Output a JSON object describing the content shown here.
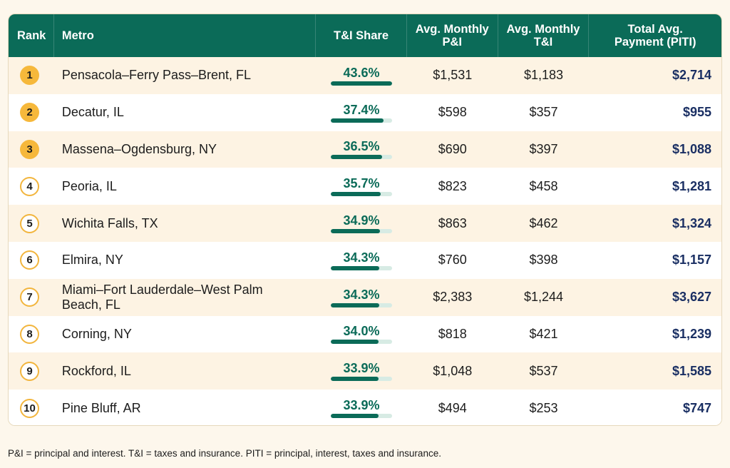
{
  "table": {
    "headers": {
      "rank": "Rank",
      "metro": "Metro",
      "share": "T&I Share",
      "pi": "Avg. Monthly P&I",
      "ti": "Avg. Monthly T&I",
      "total": "Total Avg. Payment (PITI)"
    },
    "colors": {
      "header_bg": "#0b6b58",
      "accent": "#f6b83b",
      "total_text": "#1a2f63"
    },
    "rows": [
      {
        "rank": "1",
        "metro": "Pensacola–Ferry Pass–Brent, FL",
        "share": "43.6%",
        "share_value": 43.6,
        "pi": "$1,531",
        "ti": "$1,183",
        "total": "$2,714"
      },
      {
        "rank": "2",
        "metro": "Decatur, IL",
        "share": "37.4%",
        "share_value": 37.4,
        "pi": "$598",
        "ti": "$357",
        "total": "$955"
      },
      {
        "rank": "3",
        "metro": "Massena–Ogdensburg, NY",
        "share": "36.5%",
        "share_value": 36.5,
        "pi": "$690",
        "ti": "$397",
        "total": "$1,088"
      },
      {
        "rank": "4",
        "metro": "Peoria, IL",
        "share": "35.7%",
        "share_value": 35.7,
        "pi": "$823",
        "ti": "$458",
        "total": "$1,281"
      },
      {
        "rank": "5",
        "metro": "Wichita Falls, TX",
        "share": "34.9%",
        "share_value": 34.9,
        "pi": "$863",
        "ti": "$462",
        "total": "$1,324"
      },
      {
        "rank": "6",
        "metro": "Elmira, NY",
        "share": "34.3%",
        "share_value": 34.3,
        "pi": "$760",
        "ti": "$398",
        "total": "$1,157"
      },
      {
        "rank": "7",
        "metro": "Miami–Fort Lauderdale–West Palm Beach, FL",
        "share": "34.3%",
        "share_value": 34.3,
        "pi": "$2,383",
        "ti": "$1,244",
        "total": "$3,627"
      },
      {
        "rank": "8",
        "metro": "Corning, NY",
        "share": "34.0%",
        "share_value": 34.0,
        "pi": "$818",
        "ti": "$421",
        "total": "$1,239"
      },
      {
        "rank": "9",
        "metro": "Rockford, IL",
        "share": "33.9%",
        "share_value": 33.9,
        "pi": "$1,048",
        "ti": "$537",
        "total": "$1,585"
      },
      {
        "rank": "10",
        "metro": "Pine Bluff, AR",
        "share": "33.9%",
        "share_value": 33.9,
        "pi": "$494",
        "ti": "$253",
        "total": "$747"
      }
    ]
  },
  "footnote": "P&I = principal and interest. T&I = taxes and insurance. PITI = principal, interest, taxes and insurance."
}
